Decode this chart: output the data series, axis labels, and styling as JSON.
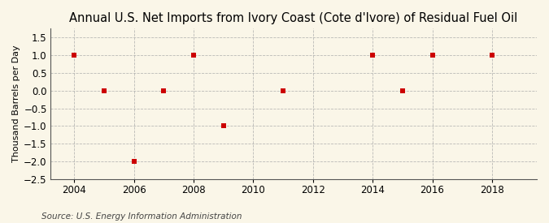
{
  "title": "Annual U.S. Net Imports from Ivory Coast (Cote d'Ivore) of Residual Fuel Oil",
  "ylabel": "Thousand Barrels per Day",
  "source": "Source: U.S. Energy Information Administration",
  "background_color": "#faf6e8",
  "plot_bg_color": "#faf6e8",
  "years": [
    2004,
    2005,
    2006,
    2007,
    2008,
    2009,
    2011,
    2014,
    2015,
    2016,
    2018
  ],
  "values": [
    1.0,
    0.0,
    -2.0,
    0.0,
    1.0,
    -1.0,
    0.0,
    1.0,
    0.0,
    1.0,
    1.0
  ],
  "marker_color": "#cc0000",
  "marker_size": 18,
  "xlim": [
    2003.2,
    2019.5
  ],
  "ylim": [
    -2.5,
    1.75
  ],
  "yticks": [
    -2.5,
    -2.0,
    -1.5,
    -1.0,
    -0.5,
    0.0,
    0.5,
    1.0,
    1.5
  ],
  "xticks": [
    2004,
    2006,
    2008,
    2010,
    2012,
    2014,
    2016,
    2018
  ],
  "grid_color": "#aaaaaa",
  "title_fontsize": 10.5,
  "axis_fontsize": 8.5,
  "source_fontsize": 7.5,
  "ylabel_fontsize": 8
}
